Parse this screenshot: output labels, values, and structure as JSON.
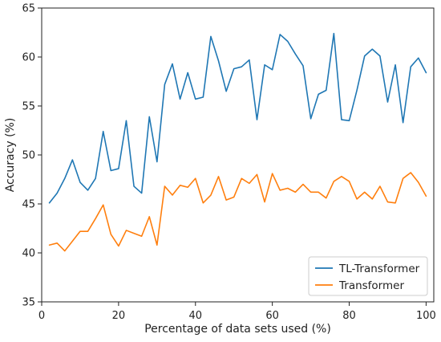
{
  "chart_data": {
    "type": "line",
    "xlabel": "Percentage of data sets used (%)",
    "ylabel": "Accuracy (%)",
    "xlim": [
      0,
      102
    ],
    "ylim": [
      35,
      65
    ],
    "xticks": [
      0,
      20,
      40,
      60,
      80,
      100
    ],
    "yticks": [
      35,
      40,
      45,
      50,
      55,
      60,
      65
    ],
    "grid": false,
    "legend_position": "bottom-right",
    "x": [
      2,
      4,
      6,
      8,
      10,
      12,
      14,
      16,
      18,
      20,
      22,
      24,
      26,
      28,
      30,
      32,
      34,
      36,
      38,
      40,
      42,
      44,
      46,
      48,
      50,
      52,
      54,
      56,
      58,
      60,
      62,
      64,
      66,
      68,
      70,
      72,
      74,
      76,
      78,
      80,
      82,
      84,
      86,
      88,
      90,
      92,
      94,
      96,
      98,
      100
    ],
    "series": [
      {
        "name": "TL-Transformer",
        "color": "#1f77b4",
        "values": [
          45.1,
          46.1,
          47.6,
          49.5,
          47.2,
          46.4,
          47.6,
          52.4,
          48.4,
          48.6,
          53.5,
          46.8,
          46.1,
          53.9,
          49.3,
          57.2,
          59.3,
          55.7,
          58.4,
          55.7,
          55.9,
          62.1,
          59.6,
          56.5,
          58.8,
          59.0,
          59.7,
          53.6,
          59.2,
          58.7,
          62.3,
          61.6,
          60.3,
          59.1,
          53.7,
          56.2,
          56.6,
          62.4,
          53.6,
          53.5,
          56.6,
          60.1,
          60.8,
          60.1,
          55.4,
          59.2,
          53.3,
          59.0,
          59.9,
          58.4
        ]
      },
      {
        "name": "Transformer",
        "color": "#ff7f0e",
        "values": [
          40.8,
          41.0,
          40.2,
          41.2,
          42.2,
          42.2,
          43.5,
          44.9,
          41.9,
          40.7,
          42.3,
          42.0,
          41.7,
          43.7,
          40.8,
          46.8,
          45.9,
          46.9,
          46.7,
          47.6,
          45.1,
          45.9,
          47.8,
          45.4,
          45.7,
          47.6,
          47.1,
          48.0,
          45.2,
          48.1,
          46.4,
          46.6,
          46.2,
          47.0,
          46.2,
          46.2,
          45.6,
          47.3,
          47.8,
          47.3,
          45.5,
          46.2,
          45.5,
          46.8,
          45.2,
          45.1,
          47.6,
          48.2,
          47.2,
          45.8
        ]
      }
    ]
  }
}
